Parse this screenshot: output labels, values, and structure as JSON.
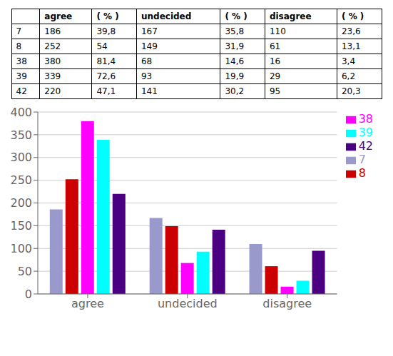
{
  "chart_data": [
    {
      "type": "table",
      "columns": [
        null,
        "agree",
        "( % )",
        "undecided",
        "( % )",
        "disagree",
        "( % )"
      ],
      "rows": [
        [
          "7",
          186,
          "39,8",
          167,
          "35,8",
          110,
          "23,6"
        ],
        [
          "8",
          252,
          "54",
          149,
          "31,9",
          61,
          "13,1"
        ],
        [
          "38",
          380,
          "81,4",
          68,
          "14,6",
          16,
          "3,4"
        ],
        [
          "39",
          339,
          "72,6",
          93,
          "19,9",
          29,
          "6,2"
        ],
        [
          "42",
          220,
          "47,1",
          141,
          "30,2",
          95,
          "20,3"
        ]
      ]
    },
    {
      "type": "bar",
      "categories": [
        "agree",
        "undecided",
        "disagree"
      ],
      "series": [
        {
          "name": "7",
          "color": "#9999CC",
          "values": [
            186,
            167,
            110
          ]
        },
        {
          "name": "8",
          "color": "#CC0000",
          "values": [
            252,
            149,
            61
          ]
        },
        {
          "name": "38",
          "color": "#FF00FF",
          "values": [
            380,
            68,
            16
          ]
        },
        {
          "name": "39",
          "color": "#00FFFF",
          "values": [
            339,
            93,
            29
          ]
        },
        {
          "name": "42",
          "color": "#4B0082",
          "values": [
            220,
            141,
            95
          ]
        }
      ],
      "ylim": [
        0,
        400
      ],
      "yticks": [
        0,
        50,
        100,
        150,
        200,
        250,
        300,
        350,
        400
      ],
      "grid": true,
      "legend": "upper right"
    }
  ]
}
